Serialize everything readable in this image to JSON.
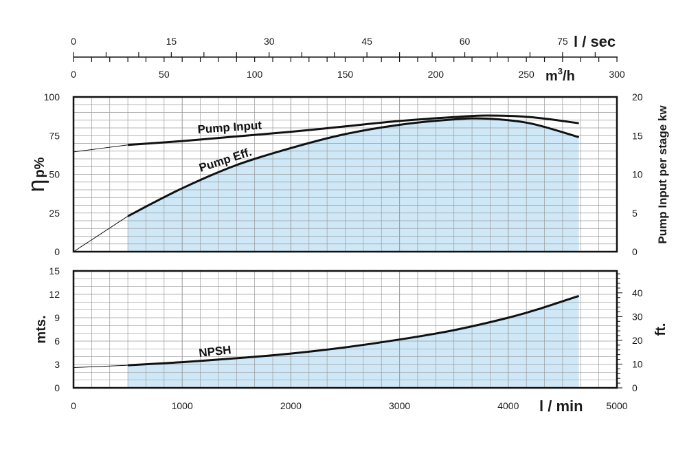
{
  "chart_data": [
    {
      "type": "line",
      "panel": "efficiency and pump input",
      "x": [
        0,
        500,
        1000,
        1500,
        2000,
        2500,
        3000,
        3500,
        3800,
        4200,
        4650
      ],
      "series": [
        {
          "name": "Pump Input",
          "y_axis": "right",
          "values": [
            12.9,
            13.8,
            14.3,
            14.9,
            15.5,
            16.2,
            16.9,
            17.4,
            17.6,
            17.4,
            16.6
          ]
        },
        {
          "name": "Pump Eff.",
          "y_axis": "left",
          "values": [
            0,
            23,
            41,
            56,
            67,
            76,
            82,
            85.5,
            86,
            83,
            74
          ]
        }
      ],
      "shaded_range": [
        500,
        4650
      ],
      "curve_labels": [
        "Pump Input",
        "Pump Eff."
      ],
      "x_range": [
        0,
        5000
      ],
      "y_left": {
        "label_symbol": "η",
        "label_unit": "p%",
        "range": [
          0,
          100
        ],
        "ticks": [
          "0",
          "25",
          "50",
          "75",
          "100"
        ]
      },
      "y_right": {
        "label": "Pump Input per stage kw",
        "range": [
          0,
          20
        ],
        "ticks": [
          "0",
          "5",
          "10",
          "15",
          "20"
        ]
      },
      "grid": true
    },
    {
      "type": "line",
      "panel": "NPSH",
      "x": [
        0,
        500,
        1000,
        1500,
        2000,
        2500,
        3000,
        3500,
        4000,
        4300,
        4650
      ],
      "series": [
        {
          "name": "NPSH",
          "y_axis": "left",
          "values": [
            2.6,
            2.9,
            3.3,
            3.8,
            4.4,
            5.2,
            6.2,
            7.4,
            9.0,
            10.2,
            11.8
          ]
        }
      ],
      "shaded_range": [
        500,
        4650
      ],
      "curve_labels": [
        "NPSH"
      ],
      "x_range": [
        0,
        5000
      ],
      "y_left": {
        "label": "mts.",
        "range": [
          0,
          15
        ],
        "ticks": [
          "0",
          "3",
          "6",
          "9",
          "12",
          "15"
        ]
      },
      "y_right": {
        "label": "ft.",
        "range_mts_equivalent": [
          0,
          15
        ],
        "ticks": [
          "0",
          "10",
          "20",
          "30",
          "40"
        ]
      },
      "x_axis": {
        "label": "l / min",
        "ticks": [
          "0",
          "1000",
          "2000",
          "3000",
          "4000",
          "5000"
        ]
      },
      "grid": true
    }
  ],
  "top_axes": {
    "lsec": {
      "label": "l / sec",
      "ticks": [
        "0",
        "15",
        "30",
        "45",
        "60",
        "75"
      ]
    },
    "m3h": {
      "label_base": "m",
      "label_sup": "3",
      "label_tail": "/h",
      "ticks": [
        "0",
        "50",
        "100",
        "150",
        "200",
        "250",
        "300"
      ]
    }
  },
  "colors": {
    "shade": "#cfe8f7",
    "grid": "#9a9a9a",
    "line": "#111111"
  }
}
